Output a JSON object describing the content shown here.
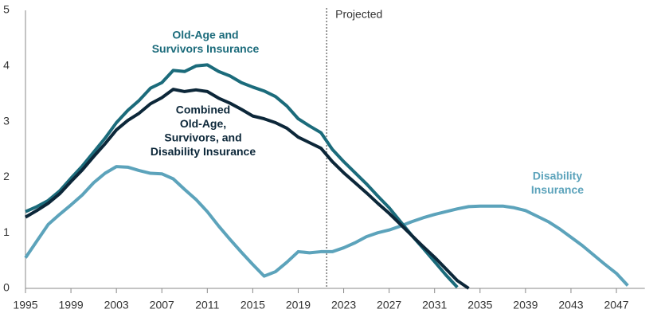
{
  "chart_data": {
    "type": "line",
    "x": [
      1995,
      1996,
      1997,
      1998,
      1999,
      2000,
      2001,
      2002,
      2003,
      2004,
      2005,
      2006,
      2007,
      2008,
      2009,
      2010,
      2011,
      2012,
      2013,
      2014,
      2015,
      2016,
      2017,
      2018,
      2019,
      2020,
      2021,
      2022,
      2023,
      2024,
      2025,
      2026,
      2027,
      2028,
      2029,
      2030,
      2031,
      2032,
      2033,
      2034,
      2035,
      2036,
      2037,
      2038,
      2039,
      2040,
      2041,
      2042,
      2043,
      2044,
      2045,
      2046,
      2047,
      2048
    ],
    "series": [
      {
        "name": [
          "Old-Age and",
          "Survivors Insurance"
        ],
        "color": "#1b6b7b",
        "values": [
          1.38,
          1.47,
          1.58,
          1.75,
          1.98,
          2.2,
          2.45,
          2.7,
          2.98,
          3.2,
          3.38,
          3.6,
          3.7,
          3.92,
          3.9,
          4.0,
          4.02,
          3.9,
          3.82,
          3.7,
          3.62,
          3.55,
          3.45,
          3.28,
          3.05,
          2.92,
          2.8,
          2.5,
          2.28,
          2.08,
          1.88,
          1.66,
          1.45,
          1.2,
          0.95,
          0.72,
          0.48,
          0.24,
          0.02,
          null,
          null,
          null,
          null,
          null,
          null,
          null,
          null,
          null,
          null,
          null,
          null,
          null,
          null,
          null
        ]
      },
      {
        "name": [
          "Combined",
          "Old-Age,",
          "Survivors, and",
          "Disability Insurance"
        ],
        "color": "#0c2739",
        "values": [
          1.28,
          1.4,
          1.53,
          1.7,
          1.92,
          2.13,
          2.37,
          2.6,
          2.85,
          3.02,
          3.15,
          3.32,
          3.43,
          3.58,
          3.54,
          3.57,
          3.54,
          3.42,
          3.33,
          3.22,
          3.1,
          3.05,
          2.98,
          2.88,
          2.72,
          2.62,
          2.52,
          2.28,
          2.08,
          1.9,
          1.72,
          1.53,
          1.35,
          1.15,
          0.95,
          0.75,
          0.56,
          0.35,
          0.14,
          0.0,
          null,
          null,
          null,
          null,
          null,
          null,
          null,
          null,
          null,
          null,
          null,
          null,
          null,
          null
        ]
      },
      {
        "name": [
          "Disability",
          "Insurance"
        ],
        "color": "#5ca3bb",
        "values": [
          0.55,
          0.85,
          1.15,
          1.33,
          1.5,
          1.68,
          1.9,
          2.07,
          2.19,
          2.18,
          2.12,
          2.07,
          2.06,
          1.97,
          1.78,
          1.6,
          1.38,
          1.12,
          0.88,
          0.65,
          0.43,
          0.22,
          0.3,
          0.47,
          0.66,
          0.64,
          0.66,
          0.66,
          0.73,
          0.82,
          0.93,
          1.0,
          1.05,
          1.12,
          1.2,
          1.27,
          1.33,
          1.38,
          1.43,
          1.47,
          1.48,
          1.48,
          1.48,
          1.45,
          1.4,
          1.3,
          1.2,
          1.07,
          0.92,
          0.77,
          0.6,
          0.43,
          0.27,
          0.05
        ]
      }
    ],
    "xlim": [
      1995,
      2049.5
    ],
    "xticks": [
      1995,
      1999,
      2003,
      2007,
      2011,
      2015,
      2019,
      2023,
      2027,
      2031,
      2035,
      2039,
      2043,
      2047
    ],
    "ylim": [
      0,
      5
    ],
    "yticks": [
      0,
      1,
      2,
      3,
      4,
      5
    ],
    "projected": {
      "label": "Projected",
      "x": 2021.5
    }
  }
}
